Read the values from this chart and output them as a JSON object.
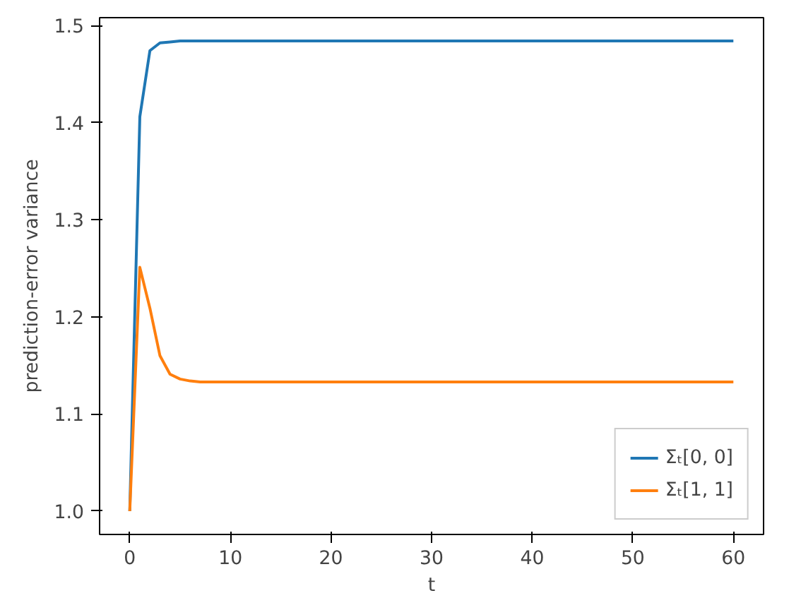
{
  "chart_data": {
    "type": "line",
    "xlabel": "t",
    "ylabel": "prediction-error variance",
    "x": [
      0,
      1,
      2,
      3,
      4,
      5,
      6,
      7,
      8,
      10,
      20,
      30,
      40,
      50,
      60
    ],
    "series": [
      {
        "name": "Σₜ[0, 0]",
        "color": "#1f77b4",
        "values": [
          1.0,
          1.406,
          1.474,
          1.482,
          1.483,
          1.484,
          1.484,
          1.484,
          1.484,
          1.484,
          1.484,
          1.484,
          1.484,
          1.484,
          1.484
        ]
      },
      {
        "name": "Σₜ[1, 1]",
        "color": "#ff7f0e",
        "values": [
          1.0,
          1.251,
          1.209,
          1.16,
          1.141,
          1.136,
          1.134,
          1.133,
          1.133,
          1.133,
          1.133,
          1.133,
          1.133,
          1.133,
          1.133
        ]
      }
    ],
    "xlim": [
      -3,
      63
    ],
    "ylim": [
      0.976,
      1.508
    ],
    "xticks": [
      0,
      10,
      20,
      30,
      40,
      50,
      60
    ],
    "yticks": [
      {
        "value": 1.0,
        "label": "1.0"
      },
      {
        "value": 1.1,
        "label": "1.1"
      },
      {
        "value": 1.2,
        "label": "1.2"
      },
      {
        "value": 1.3,
        "label": "1.3"
      },
      {
        "value": 1.4,
        "label": "1.4"
      },
      {
        "value": 1.5,
        "label": "1.5"
      }
    ],
    "grid": false,
    "legend": "bottom right",
    "line_style": "solid"
  }
}
